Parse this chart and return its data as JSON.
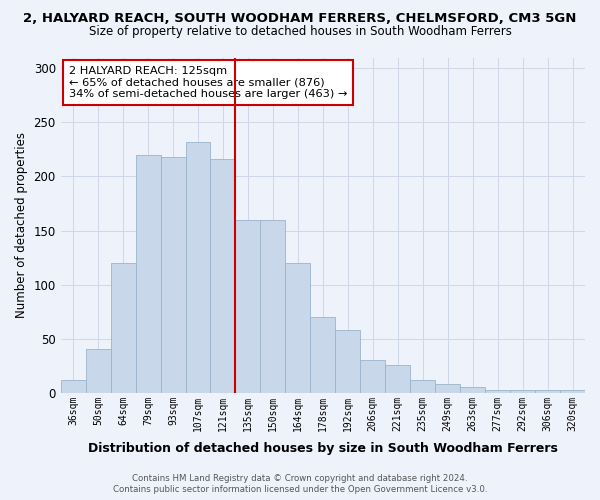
{
  "title_line1": "2, HALYARD REACH, SOUTH WOODHAM FERRERS, CHELMSFORD, CM3 5GN",
  "title_line2": "Size of property relative to detached houses in South Woodham Ferrers",
  "xlabel": "Distribution of detached houses by size in South Woodham Ferrers",
  "ylabel": "Number of detached properties",
  "categories": [
    "36sqm",
    "50sqm",
    "64sqm",
    "79sqm",
    "93sqm",
    "107sqm",
    "121sqm",
    "135sqm",
    "150sqm",
    "164sqm",
    "178sqm",
    "192sqm",
    "206sqm",
    "221sqm",
    "235sqm",
    "249sqm",
    "263sqm",
    "277sqm",
    "292sqm",
    "306sqm",
    "320sqm"
  ],
  "values": [
    12,
    41,
    120,
    220,
    218,
    232,
    216,
    160,
    160,
    120,
    70,
    58,
    30,
    26,
    12,
    8,
    5,
    3,
    3,
    3,
    3
  ],
  "bar_color": "#c8d8ea",
  "bar_edge_color": "#9ab4cc",
  "vline_x": 6.5,
  "vline_color": "#cc0000",
  "annotation_text": "2 HALYARD REACH: 125sqm\n← 65% of detached houses are smaller (876)\n34% of semi-detached houses are larger (463) →",
  "annotation_box_color": "#ffffff",
  "annotation_box_edge_color": "#cc0000",
  "grid_color": "#cdd8e8",
  "background_color": "#eef2fa",
  "footer_line1": "Contains HM Land Registry data © Crown copyright and database right 2024.",
  "footer_line2": "Contains public sector information licensed under the Open Government Licence v3.0.",
  "ylim": [
    0,
    310
  ],
  "yticks": [
    0,
    50,
    100,
    150,
    200,
    250,
    300
  ]
}
